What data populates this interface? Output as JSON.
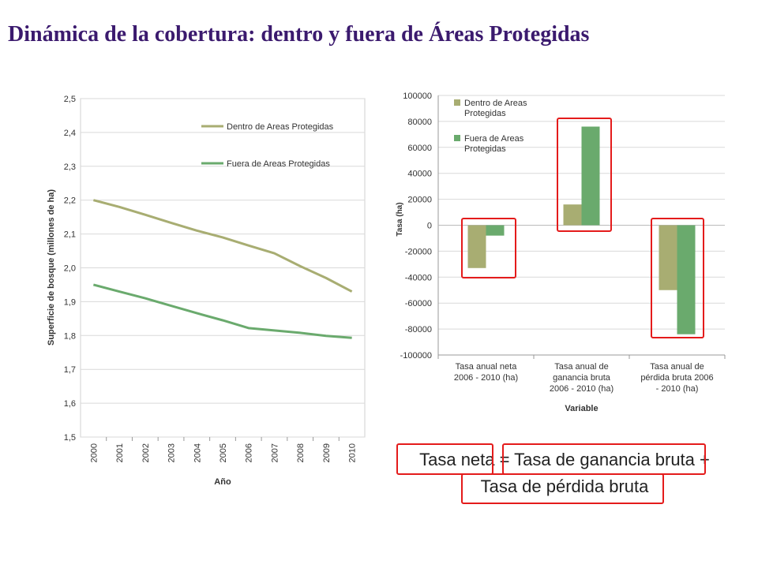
{
  "title": "Dinámica de la cobertura: dentro y fuera de Áreas Protegidas",
  "formula": {
    "line1": "Tasa neta = Tasa de ganancia bruta +",
    "line2": "Tasa de pérdida bruta"
  },
  "colors": {
    "title": "#3b1a6e",
    "dentro": "#a8ad72",
    "fuera": "#6aaa6d",
    "highlight": "#e41b1b"
  },
  "chart_data": [
    {
      "type": "line",
      "xlabel": "Año",
      "ylabel": "Superficie de bosque (millones de ha)",
      "x": [
        "2000",
        "2001",
        "2002",
        "2003",
        "2004",
        "2005",
        "2006",
        "2007",
        "2008",
        "2009",
        "2010"
      ],
      "ylim": [
        1.5,
        2.5
      ],
      "yticks": [
        "2,5",
        "2,4",
        "2,3",
        "2,2",
        "2,1",
        "2,0",
        "1,9",
        "1,8",
        "1,7",
        "1,6",
        "1,5"
      ],
      "grid": true,
      "legend": "top-right",
      "series": [
        {
          "name": "Dentro de Areas Protegidas",
          "values": [
            2.2,
            2.18,
            2.157,
            2.133,
            2.11,
            2.09,
            2.066,
            2.043,
            2.005,
            1.97,
            1.93
          ]
        },
        {
          "name": "Fuera de Areas Protegidas",
          "values": [
            1.95,
            1.93,
            1.91,
            1.888,
            1.866,
            1.845,
            1.822,
            1.815,
            1.808,
            1.799,
            1.793
          ]
        }
      ]
    },
    {
      "type": "bar",
      "xlabel": "Variable",
      "ylabel": "Tasa (ha)",
      "categories": [
        [
          "Tasa anual neta",
          "2006 -  2010 (ha)"
        ],
        [
          "Tasa anual de",
          "ganancia bruta",
          "2006 -  2010 (ha)"
        ],
        [
          "Tasa anual de",
          "pérdida bruta  2006",
          " -  2010 (ha)"
        ]
      ],
      "ylim": [
        -100000,
        100000
      ],
      "yticks": [
        "100000",
        "80000",
        "60000",
        "40000",
        "20000",
        "0",
        "-20000",
        "-40000",
        "-60000",
        "-80000",
        "-100000"
      ],
      "grid": true,
      "legend": "top-left",
      "series": [
        {
          "name": [
            "Dentro de Areas",
            "Protegidas"
          ],
          "values": [
            -33000,
            16000,
            -50000
          ]
        },
        {
          "name": [
            "Fuera de Areas",
            "Protegidas"
          ],
          "values": [
            -8000,
            76000,
            -84000
          ]
        }
      ]
    }
  ]
}
